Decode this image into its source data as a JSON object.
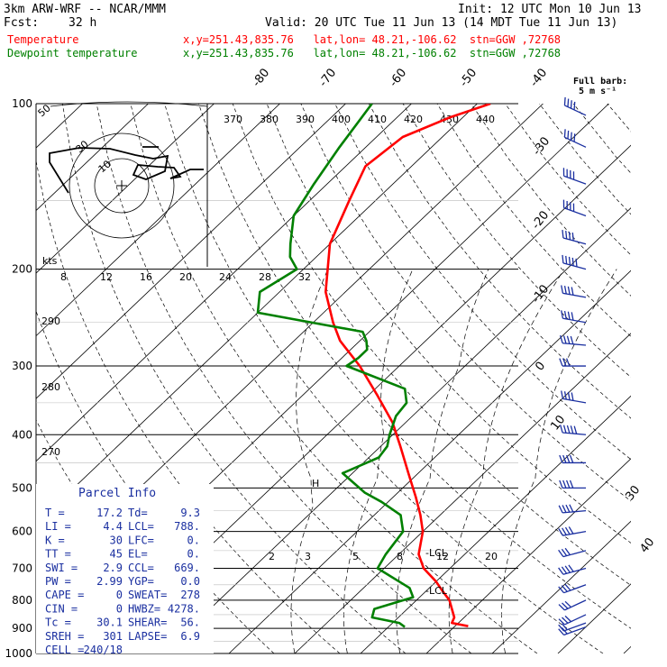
{
  "header": {
    "model": "3km ARW-WRF -- NCAR/MMM",
    "init": "Init: 12 UTC Mon 10 Jun 13",
    "fcst_label": "Fcst:",
    "fcst_value": "32 h",
    "valid": "Valid: 20 UTC Tue 11 Jun 13 (14 MDT Tue 11 Jun 13)",
    "temp_label": "Temperature",
    "temp_loc": "x,y=251.43,835.76   lat,lon= 48.21,-106.62  stn=GGW ,72768",
    "dew_label": "Dewpoint temperature",
    "dew_loc": "x,y=251.43,835.76   lat,lon= 48.21,-106.62  stn=GGW ,72768"
  },
  "legend_barb": {
    "line1": "Full barb:",
    "line2": "5 m s⁻¹"
  },
  "colors": {
    "temperature": "#ff0000",
    "dewpoint": "#008000",
    "panel": "#1a2fa0",
    "barbs": "#1a2fa0",
    "hodo": "#000000"
  },
  "parcel_info": {
    "title": "Parcel Info",
    "rows": [
      {
        "k1": "T",
        "v1": "17.2",
        "k2": "Td",
        "v2": "9.3"
      },
      {
        "k1": "LI",
        "v1": "4.4",
        "k2": "LCL",
        "v2": "788."
      },
      {
        "k1": "K",
        "v1": "30",
        "k2": "LFC",
        "v2": "0."
      },
      {
        "k1": "TT",
        "v1": "45",
        "k2": "EL",
        "v2": "0."
      },
      {
        "k1": "SWI",
        "v1": "2.9",
        "k2": "CCL",
        "v2": "669."
      },
      {
        "k1": "PW",
        "v1": "2.99",
        "k2": "YGP",
        "v2": "0.0"
      },
      {
        "k1": "CAPE",
        "v1": "0",
        "k2": "SWEAT",
        "v2": "278"
      },
      {
        "k1": "CIN",
        "v1": "0",
        "k2": "HWBZ",
        "v2": "4278."
      },
      {
        "k1": "Tc",
        "v1": "30.1",
        "k2": "SHEAR",
        "v2": "56."
      },
      {
        "k1": "SREH",
        "v1": "301",
        "k2": "LAPSE",
        "v2": "6.9"
      },
      {
        "k1": "CELL",
        "v1": "240/18",
        "k2": "",
        "v2": ""
      }
    ]
  },
  "annotations": {
    "lcl_upper": "-LCL",
    "lcl_lower": "-LCL",
    "kts": "kts",
    "h": "H"
  },
  "chart_data": {
    "type": "line",
    "subtype": "skew-T log-p sounding",
    "y_axis": {
      "label": "",
      "scale": "log",
      "ticks": [
        100,
        200,
        300,
        400,
        500,
        600,
        700,
        800,
        900,
        1000
      ],
      "range": [
        1000,
        100
      ]
    },
    "skewed_temperature_labels": [
      "-80",
      "-70",
      "-60",
      "-50",
      "-40",
      "-30",
      "-20",
      "-10",
      "0",
      "10",
      "30",
      "40"
    ],
    "theta_labels_top": [
      "370",
      "380",
      "390",
      "400",
      "410",
      "420",
      "430",
      "440"
    ],
    "theta_labels_left": [
      "290",
      "280",
      "270"
    ],
    "mixing_ratio_labels": [
      "2",
      "3",
      "5",
      "8",
      "12",
      "20"
    ],
    "hodograph": {
      "ring_labels": [
        "50",
        "30",
        "10"
      ],
      "speed_labels": [
        "8",
        "12",
        "16",
        "20",
        "24",
        "28",
        "32"
      ]
    },
    "series": [
      {
        "name": "Temperature",
        "color": "#ff0000",
        "p": [
          892,
          880,
          860,
          800,
          770,
          740,
          700,
          660,
          600,
          560,
          520,
          470,
          420,
          380,
          340,
          300,
          270,
          250,
          220,
          180,
          150,
          130,
          115,
          106,
          100
        ],
        "t": [
          22.0,
          19.0,
          18.5,
          15.0,
          12.5,
          10.0,
          6.0,
          3.0,
          0.0,
          -3.0,
          -6.5,
          -11.5,
          -17.0,
          -22.0,
          -28.5,
          -36.0,
          -43.0,
          -47.0,
          -53.0,
          -60.0,
          -64.0,
          -67.0,
          -66.0,
          -62.0,
          -58.0
        ]
      },
      {
        "name": "Dewpoint temperature",
        "color": "#008000",
        "p": [
          895,
          880,
          860,
          830,
          790,
          760,
          700,
          660,
          600,
          560,
          530,
          510,
          470,
          440,
          420,
          400,
          370,
          350,
          330,
          300,
          290,
          280,
          270,
          260,
          240,
          220,
          200,
          190,
          180,
          160,
          140,
          120,
          100
        ],
        "t": [
          12.5,
          11.0,
          6.0,
          5.0,
          9.0,
          7.0,
          -1.0,
          -2.0,
          -3.0,
          -6.0,
          -11.0,
          -15.0,
          -21.5,
          -18.5,
          -19.0,
          -20.5,
          -22.5,
          -23.0,
          -25.5,
          -38.0,
          -37.5,
          -37.5,
          -39.0,
          -41.0,
          -60.0,
          -63.0,
          -61.0,
          -64.0,
          -66.0,
          -70.0,
          -72.0,
          -74.0,
          -76.0
        ]
      }
    ],
    "wind_barbs": {
      "units": "m/s",
      "p": [
        895,
        880,
        850,
        800,
        750,
        700,
        650,
        600,
        550,
        500,
        450,
        400,
        350,
        300,
        275,
        250,
        225,
        200,
        180,
        160,
        140,
        120,
        105
      ],
      "speed_ms": [
        12,
        14,
        15,
        16,
        18,
        20,
        18,
        20,
        21,
        22,
        24,
        25,
        22,
        18,
        20,
        22,
        24,
        25,
        24,
        24,
        23,
        22,
        20
      ],
      "dir_deg": [
        250,
        250,
        245,
        245,
        250,
        255,
        255,
        260,
        265,
        270,
        270,
        275,
        280,
        270,
        275,
        280,
        280,
        285,
        285,
        290,
        290,
        295,
        295
      ]
    }
  }
}
